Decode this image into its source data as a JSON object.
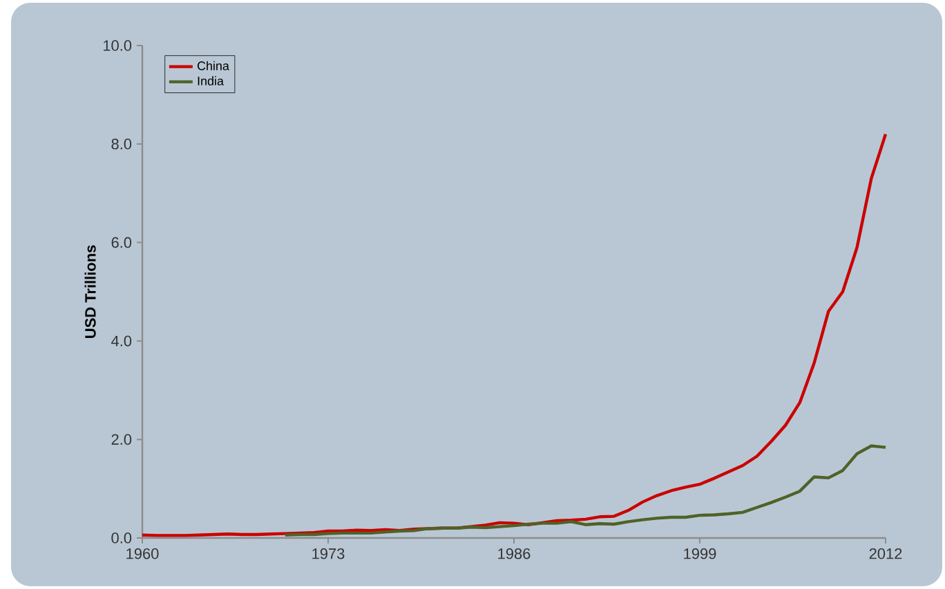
{
  "chart_data": {
    "type": "line",
    "ylabel": "USD Trillions",
    "x": [
      1960,
      1961,
      1962,
      1963,
      1964,
      1965,
      1966,
      1967,
      1968,
      1969,
      1970,
      1971,
      1972,
      1973,
      1974,
      1975,
      1976,
      1977,
      1978,
      1979,
      1980,
      1981,
      1982,
      1983,
      1984,
      1985,
      1986,
      1987,
      1988,
      1989,
      1990,
      1991,
      1992,
      1993,
      1994,
      1995,
      1996,
      1997,
      1998,
      1999,
      2000,
      2001,
      2002,
      2003,
      2004,
      2005,
      2006,
      2007,
      2008,
      2009,
      2010,
      2011,
      2012
    ],
    "series": [
      {
        "name": "China",
        "color": "#cc0000",
        "values": [
          0.06,
          0.05,
          0.05,
          0.05,
          0.06,
          0.07,
          0.08,
          0.07,
          0.07,
          0.08,
          0.09,
          0.1,
          0.11,
          0.14,
          0.14,
          0.16,
          0.15,
          0.17,
          0.15,
          0.18,
          0.19,
          0.2,
          0.2,
          0.23,
          0.26,
          0.31,
          0.3,
          0.27,
          0.31,
          0.35,
          0.36,
          0.38,
          0.43,
          0.44,
          0.56,
          0.73,
          0.86,
          0.96,
          1.03,
          1.09,
          1.21,
          1.34,
          1.47,
          1.66,
          1.96,
          2.29,
          2.75,
          3.55,
          4.6,
          5.0,
          5.9,
          7.3,
          8.2
        ]
      },
      {
        "name": "India",
        "color": "#4f6228",
        "values": [
          null,
          null,
          null,
          null,
          null,
          null,
          null,
          null,
          null,
          null,
          0.06,
          0.07,
          0.07,
          0.09,
          0.1,
          0.1,
          0.1,
          0.12,
          0.14,
          0.15,
          0.19,
          0.2,
          0.2,
          0.22,
          0.21,
          0.23,
          0.25,
          0.28,
          0.3,
          0.3,
          0.33,
          0.27,
          0.29,
          0.28,
          0.33,
          0.37,
          0.4,
          0.42,
          0.42,
          0.46,
          0.47,
          0.49,
          0.52,
          0.62,
          0.72,
          0.83,
          0.95,
          1.24,
          1.22,
          1.37,
          1.71,
          1.87,
          1.84
        ]
      }
    ],
    "xlim": [
      1960,
      2012
    ],
    "xticks": [
      1960,
      1973,
      1986,
      1999,
      2012
    ],
    "ylim": [
      0,
      10
    ],
    "yticks": [
      {
        "value": 0,
        "label": "0.0"
      },
      {
        "value": 2,
        "label": "2.0"
      },
      {
        "value": 4,
        "label": "4.0"
      },
      {
        "value": 6,
        "label": "6.0"
      },
      {
        "value": 8,
        "label": "8.0"
      },
      {
        "value": 10,
        "label": "10.0"
      }
    ],
    "grid": false,
    "legend": "top left",
    "marker": "none",
    "line_style": "solid"
  }
}
